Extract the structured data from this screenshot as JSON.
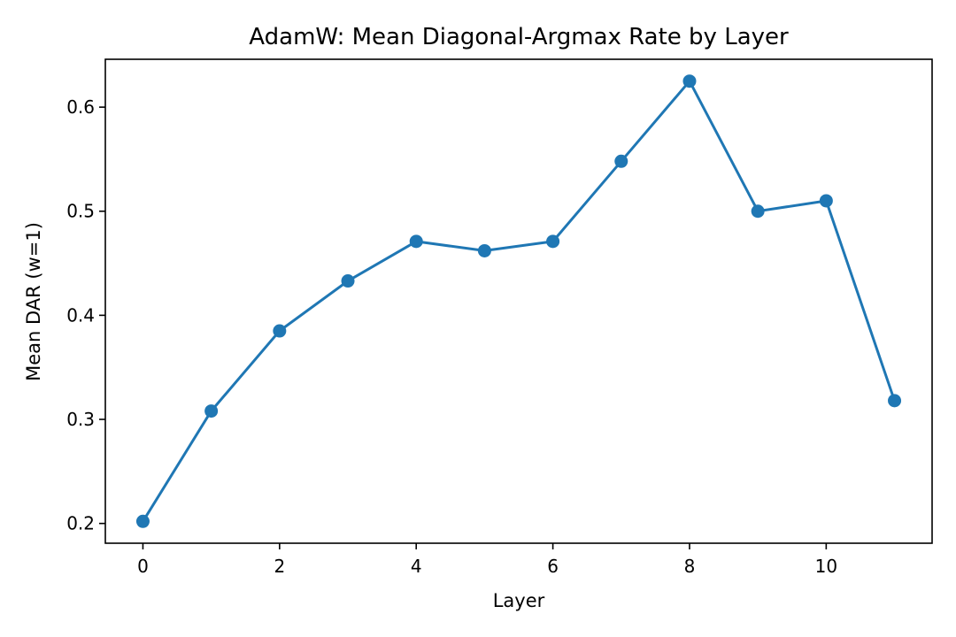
{
  "chart_data": {
    "type": "line",
    "title": "AdamW: Mean Diagonal-Argmax Rate by Layer",
    "xlabel": "Layer",
    "ylabel": "Mean DAR (w=1)",
    "x": [
      0,
      1,
      2,
      3,
      4,
      5,
      6,
      7,
      8,
      9,
      10,
      11
    ],
    "series": [
      {
        "values": [
          0.202,
          0.308,
          0.385,
          0.433,
          0.471,
          0.462,
          0.471,
          0.548,
          0.625,
          0.5,
          0.51,
          0.318
        ]
      }
    ],
    "xlim": [
      -0.55,
      11.55
    ],
    "ylim": [
      0.181,
      0.646
    ],
    "xticks": [
      0,
      2,
      4,
      6,
      8,
      10
    ],
    "yticks": [
      0.2,
      0.3,
      0.4,
      0.5,
      0.6
    ],
    "ytick_labels": [
      "0.2",
      "0.3",
      "0.4",
      "0.5",
      "0.6"
    ],
    "grid": false,
    "legend": "none",
    "color": "#1f77b4"
  }
}
